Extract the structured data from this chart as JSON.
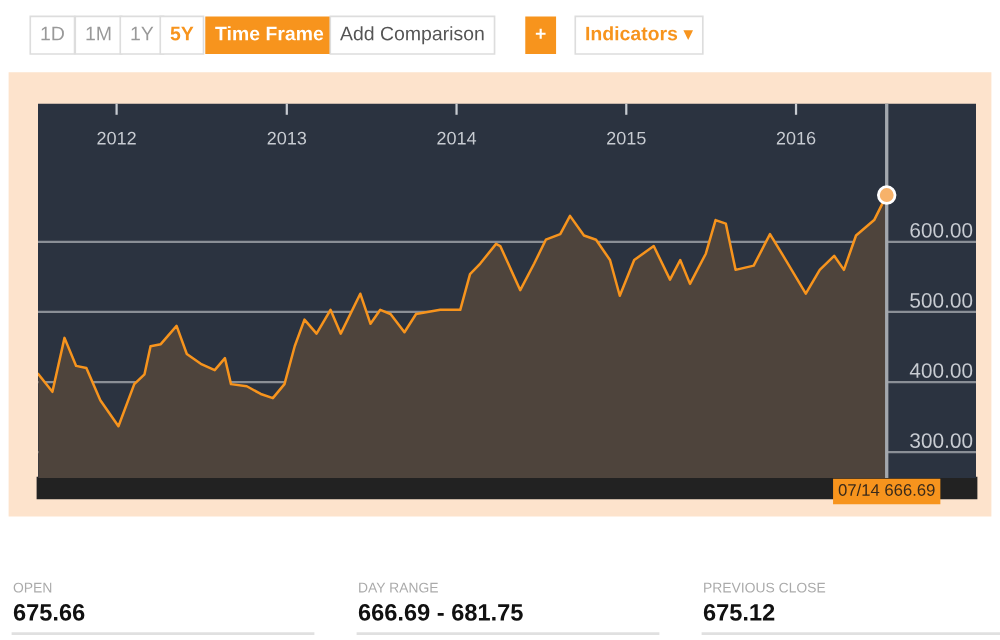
{
  "chart_data": {
    "type": "area",
    "x": [
      "2011-07-17",
      "2011-08-16",
      "2011-09-11",
      "2011-10-06",
      "2011-10-28",
      "2011-11-27",
      "2012-01-05",
      "2012-02-08",
      "2012-03-01",
      "2012-03-14",
      "2012-04-05",
      "2012-05-09",
      "2012-05-31",
      "2012-06-30",
      "2012-07-30",
      "2012-08-21",
      "2012-09-03",
      "2012-10-07",
      "2012-11-06",
      "2012-12-02",
      "2012-12-27",
      "2013-01-18",
      "2013-02-08",
      "2013-03-06",
      "2013-04-05",
      "2013-04-27",
      "2013-06-08",
      "2013-06-30",
      "2013-07-21",
      "2013-08-12",
      "2013-09-11",
      "2013-10-06",
      "2013-11-27",
      "2014-01-09",
      "2014-01-30",
      "2014-02-21",
      "2014-03-27",
      "2014-04-05",
      "2014-05-18",
      "2014-06-17",
      "2014-07-12",
      "2014-08-12",
      "2014-09-02",
      "2014-10-02",
      "2014-10-28",
      "2014-11-27",
      "2014-12-18",
      "2015-01-18",
      "2015-03-01",
      "2015-04-05",
      "2015-04-27",
      "2015-05-18",
      "2015-06-21",
      "2015-07-12",
      "2015-08-03",
      "2015-08-24",
      "2015-10-02",
      "2015-11-06",
      "2015-12-10",
      "2016-01-22",
      "2016-02-21",
      "2016-03-23",
      "2016-04-13",
      "2016-05-09",
      "2016-06-17",
      "2016-07-14"
    ],
    "series": [
      {
        "color": "#f7941d",
        "values": [
          411,
          386,
          463,
          423,
          420,
          374,
          337,
          397,
          411,
          451,
          454,
          480,
          440,
          426,
          417,
          434,
          397,
          394,
          383,
          377,
          397,
          451,
          489,
          469,
          503,
          469,
          526,
          483,
          503,
          497,
          471,
          497,
          503,
          503,
          554,
          569,
          597,
          594,
          531,
          569,
          603,
          611,
          637,
          609,
          603,
          574,
          523,
          574,
          594,
          546,
          574,
          540,
          583,
          631,
          626,
          560,
          566,
          611,
          574,
          526,
          560,
          580,
          560,
          609,
          631,
          666.69
        ]
      }
    ],
    "xlim": [
      "2011-07-16",
      "2017-01-22"
    ],
    "xticks": [
      {
        "value": "2012-01-01",
        "label": "2012"
      },
      {
        "value": "2013-01-01",
        "label": "2013"
      },
      {
        "value": "2014-01-01",
        "label": "2014"
      },
      {
        "value": "2015-01-01",
        "label": "2015"
      },
      {
        "value": "2016-01-01",
        "label": "2016"
      }
    ],
    "ylim": [
      263,
      797
    ],
    "yticks": [
      {
        "value": 300,
        "label": "300.00"
      },
      {
        "value": 400,
        "label": "400.00"
      },
      {
        "value": 500,
        "label": "500.00"
      },
      {
        "value": 600,
        "label": "600.00"
      }
    ],
    "grid": "y",
    "ref_lines": [
      {
        "axis": "x",
        "value": "2016-07-14",
        "color": "#a3a8ae"
      }
    ],
    "annotations": [
      "07/14 666.69",
      "1D",
      "1M",
      "1Y",
      "5Y",
      "Time Frame",
      "Add Comparison",
      "+",
      "Indicators ▾",
      "OPEN",
      "675.66",
      "DAY RANGE",
      "666.69 - 681.75",
      "PREVIOUS CLOSE",
      "675.12"
    ]
  }
}
